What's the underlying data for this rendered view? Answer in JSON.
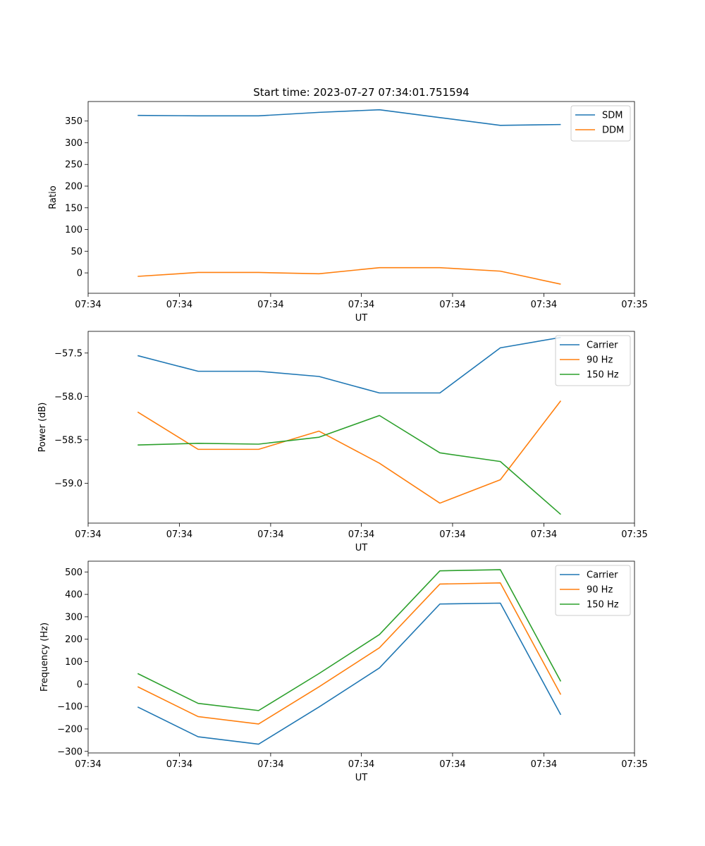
{
  "figure": {
    "title": "Start time: 2023-07-27 07:34:01.751594"
  },
  "chart_data": [
    {
      "type": "line",
      "title": "Start time: 2023-07-27 07:34:01.751594",
      "xlabel": "UT",
      "ylabel": "Ratio",
      "x": [
        1,
        2,
        3,
        4,
        5,
        6,
        7,
        8
      ],
      "xlim": [
        0.18,
        9.22
      ],
      "xticks": [
        0.18,
        1.69,
        3.2,
        4.7,
        6.21,
        7.72,
        9.22
      ],
      "xtick_labels": [
        "07:34",
        "07:34",
        "07:34",
        "07:34",
        "07:34",
        "07:34",
        "07:35"
      ],
      "ylim": [
        -47,
        395
      ],
      "yticks": [
        0,
        50,
        100,
        150,
        200,
        250,
        300,
        350
      ],
      "legend": "upper-right",
      "series": [
        {
          "name": "SDM",
          "color": "#1f77b4",
          "values": [
            363,
            362,
            362,
            370,
            376,
            358,
            340,
            342
          ]
        },
        {
          "name": "DDM",
          "color": "#ff7f0e",
          "values": [
            -8,
            1,
            1,
            -2,
            12,
            12,
            4,
            -26
          ]
        }
      ]
    },
    {
      "type": "line",
      "xlabel": "UT",
      "ylabel": "Power (dB)",
      "x": [
        1,
        2,
        3,
        4,
        5,
        6,
        7,
        8
      ],
      "xlim": [
        0.18,
        9.22
      ],
      "xticks": [
        0.18,
        1.69,
        3.2,
        4.7,
        6.21,
        7.72,
        9.22
      ],
      "xtick_labels": [
        "07:34",
        "07:34",
        "07:34",
        "07:34",
        "07:34",
        "07:34",
        "07:35"
      ],
      "ylim": [
        -59.46,
        -57.25
      ],
      "yticks": [
        -59.0,
        -58.5,
        -58.0,
        -57.5
      ],
      "ytick_labels": [
        "−59.0",
        "−58.5",
        "−58.0",
        "−57.5"
      ],
      "legend": "upper-right",
      "series": [
        {
          "name": "Carrier",
          "color": "#1f77b4",
          "values": [
            -57.53,
            -57.71,
            -57.71,
            -57.77,
            -57.96,
            -57.96,
            -57.44,
            -57.32
          ]
        },
        {
          "name": "90 Hz",
          "color": "#ff7f0e",
          "values": [
            -58.18,
            -58.61,
            -58.61,
            -58.4,
            -58.77,
            -59.23,
            -58.96,
            -58.05
          ]
        },
        {
          "name": "150 Hz",
          "color": "#2ca02c",
          "values": [
            -58.56,
            -58.54,
            -58.55,
            -58.47,
            -58.22,
            -58.65,
            -58.75,
            -59.36
          ]
        }
      ]
    },
    {
      "type": "line",
      "xlabel": "UT",
      "ylabel": "Frequency (Hz)",
      "x": [
        1,
        2,
        3,
        4,
        5,
        6,
        7,
        8
      ],
      "xlim": [
        0.18,
        9.22
      ],
      "xticks": [
        0.18,
        1.69,
        3.2,
        4.7,
        6.21,
        7.72,
        9.22
      ],
      "xtick_labels": [
        "07:34",
        "07:34",
        "07:34",
        "07:34",
        "07:34",
        "07:34",
        "07:35"
      ],
      "ylim": [
        -307,
        548
      ],
      "yticks": [
        -300,
        -200,
        -100,
        0,
        100,
        200,
        300,
        400,
        500
      ],
      "ytick_labels": [
        "−300",
        "−200",
        "−100",
        "0",
        "100",
        "200",
        "300",
        "400",
        "500"
      ],
      "legend": "upper-right",
      "series": [
        {
          "name": "Carrier",
          "color": "#1f77b4",
          "values": [
            -102,
            -235,
            -268,
            -102,
            72,
            357,
            361,
            -137
          ]
        },
        {
          "name": "90 Hz",
          "color": "#ff7f0e",
          "values": [
            -12,
            -145,
            -178,
            -12,
            162,
            446,
            451,
            -47
          ]
        },
        {
          "name": "150 Hz",
          "color": "#2ca02c",
          "values": [
            47,
            -86,
            -118,
            47,
            221,
            505,
            510,
            12
          ]
        }
      ]
    }
  ]
}
